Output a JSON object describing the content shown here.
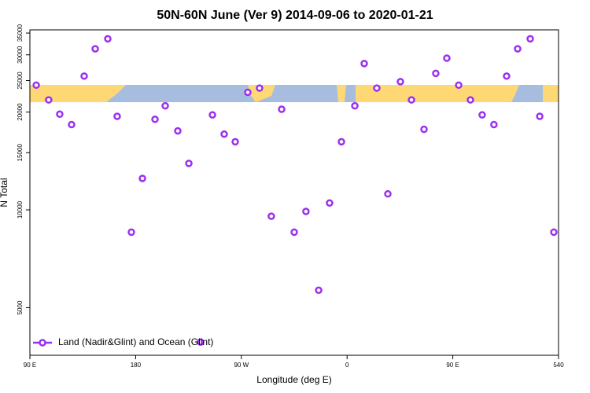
{
  "chart_data": {
    "type": "scatter",
    "title": "50N-60N June (Ver 9)   2014-09-06 to 2020-01-21",
    "x_label": "Longitude (deg E)",
    "y_label": "N Total",
    "yscale": "log",
    "legend": "bottom-left",
    "xlim": [
      90,
      540
    ],
    "xticks": [
      {
        "value": 90,
        "label": "90 E"
      },
      180,
      {
        "value": 270,
        "label": "90 W"
      },
      {
        "value": 360,
        "label": "0"
      },
      {
        "value": 450,
        "label": "90 E"
      },
      540
    ],
    "ylim": [
      3570,
      35800
    ],
    "yticks": [
      5000,
      10000,
      15000,
      20000,
      25000,
      30000,
      35000
    ],
    "series": [
      {
        "name": "Land (Nadir&Glint) and Ocean (Glint)",
        "color": "#9b30f0",
        "x": [
          95.4,
          106,
          115.4,
          125.5,
          136.2,
          145.6,
          156.3,
          164.3,
          176.4,
          185.8,
          196.5,
          205.2,
          215.9,
          225.3,
          235.3,
          245.4,
          255.4,
          264.8,
          275.5,
          285.5,
          295.5,
          304.3,
          315,
          325,
          335.8,
          345.1,
          355.2,
          366.6,
          374.6,
          385.3,
          394.7,
          405.4,
          414.8,
          425.5,
          435.5,
          444.9,
          455,
          465,
          475,
          485,
          495.8,
          505.2,
          515.9,
          524,
          536
        ],
        "values": [
          24200,
          21800,
          19700,
          18300,
          25800,
          31300,
          33600,
          19400,
          8540,
          12500,
          19000,
          20900,
          17500,
          13900,
          3920,
          19600,
          17100,
          16200,
          23000,
          23700,
          9560,
          20400,
          8540,
          9890,
          5660,
          10500,
          16200,
          20900,
          28200,
          23700,
          11200,
          24800,
          21800,
          17700,
          26300,
          29300,
          24200,
          21800,
          19600,
          18300,
          25800,
          31300,
          33600,
          19400,
          8540
        ]
      }
    ]
  }
}
